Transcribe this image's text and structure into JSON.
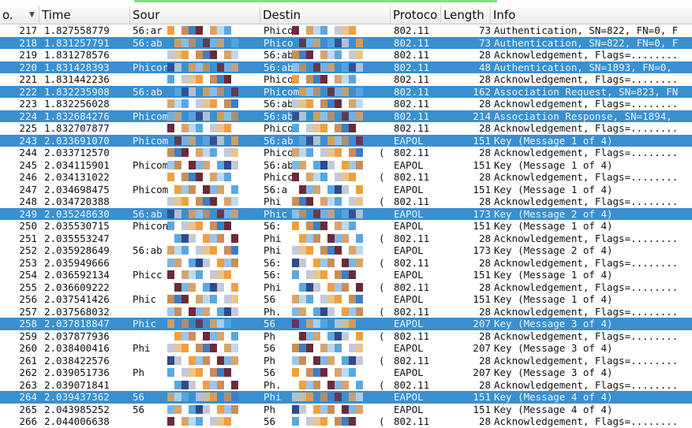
{
  "columns": [
    {
      "label": "o."
    },
    {
      "label": "Time"
    },
    {
      "label": "Sour"
    },
    {
      "label": "Destin"
    },
    {
      "label": "Protoco"
    },
    {
      "label": "Length"
    },
    {
      "label": "Info"
    }
  ],
  "colors": {
    "selected_row": "#3a8fd0",
    "header_bg": "#ececec",
    "accent_line": "#7ee07e"
  },
  "rows": [
    {
      "no": "217",
      "time": "1.827558779",
      "src": "56:ar",
      "dst": "Phico",
      "paren": "",
      "proto": "802.11",
      "len": "73",
      "info": "Authentication, SN=822, FN=0, F",
      "sel": false
    },
    {
      "no": "218",
      "time": "1.831257791",
      "src": "56:ab",
      "dst": "Phico",
      "paren": "",
      "proto": "802.11",
      "len": "73",
      "info": "Authentication, SN=822, FN=0, F",
      "sel": true
    },
    {
      "no": "219",
      "time": "1.831278576",
      "src": "",
      "dst": "56:ab",
      "paren": "",
      "proto": "802.11",
      "len": "28",
      "info": "Acknowledgement, Flags=........",
      "sel": false
    },
    {
      "no": "220",
      "time": "1.831428393",
      "src": "Phicor",
      "dst": "56:ab",
      "paren": "",
      "proto": "802.11",
      "len": "48",
      "info": "Authentication, SN=1893, FN=0,",
      "sel": true
    },
    {
      "no": "221",
      "time": "1.831442236",
      "src": "",
      "dst": "Phicom",
      "paren": "",
      "proto": "802.11",
      "len": "28",
      "info": "Acknowledgement, Flags=........",
      "sel": false
    },
    {
      "no": "222",
      "time": "1.832235908",
      "src": "56:ab",
      "dst": "Phicom",
      "paren": "",
      "proto": "802.11",
      "len": "162",
      "info": "Association Request, SN=823, FN",
      "sel": true
    },
    {
      "no": "223",
      "time": "1.832256028",
      "src": "",
      "dst": "56:ab:",
      "paren": "",
      "proto": "802.11",
      "len": "28",
      "info": "Acknowledgement, Flags=........",
      "sel": false
    },
    {
      "no": "224",
      "time": "1.832684276",
      "src": "Phicom",
      "dst": "56:ab",
      "paren": "",
      "proto": "802.11",
      "len": "214",
      "info": "Association Response, SN=1894,",
      "sel": true
    },
    {
      "no": "225",
      "time": "1.832707877",
      "src": "",
      "dst": "Phicor",
      "paren": "",
      "proto": "802.11",
      "len": "28",
      "info": "Acknowledgement, Flags=........",
      "sel": false
    },
    {
      "no": "243",
      "time": "2.033691070",
      "src": "Phicom",
      "dst": "56:ab",
      "paren": "",
      "proto": "EAPOL",
      "len": "151",
      "info": "Key (Message 1 of 4)",
      "sel": true
    },
    {
      "no": "244",
      "time": "2.033712570",
      "src": "",
      "dst": "Phico",
      "paren": "(",
      "proto": "802.11",
      "len": "28",
      "info": "Acknowledgement, Flags=........",
      "sel": false
    },
    {
      "no": "245",
      "time": "2.034115901",
      "src": "Phicom",
      "dst": "56:ab",
      "paren": "",
      "proto": "EAPOL",
      "len": "151",
      "info": "Key (Message 1 of 4)",
      "sel": false
    },
    {
      "no": "246",
      "time": "2.034131022",
      "src": "",
      "dst": "Phicc",
      "paren": "(",
      "proto": "802.11",
      "len": "28",
      "info": "Acknowledgement, Flags=........",
      "sel": false
    },
    {
      "no": "247",
      "time": "2.034698475",
      "src": "Phicom",
      "dst": "56:a",
      "paren": "",
      "proto": "EAPOL",
      "len": "151",
      "info": "Key (Message 1 of 4)",
      "sel": false
    },
    {
      "no": "248",
      "time": "2.034720388",
      "src": "",
      "dst": "Phi",
      "paren": "(",
      "proto": "802.11",
      "len": "28",
      "info": "Acknowledgement, Flags=........",
      "sel": false
    },
    {
      "no": "249",
      "time": "2.035248630",
      "src": "56:ab",
      "dst": "Phic",
      "paren": "",
      "proto": "EAPOL",
      "len": "173",
      "info": "Key (Message 2 of 4)",
      "sel": true
    },
    {
      "no": "250",
      "time": "2.035530715",
      "src": "Phicon",
      "dst": "56:",
      "paren": "",
      "proto": "EAPOL",
      "len": "151",
      "info": "Key (Message 1 of 4)",
      "sel": false
    },
    {
      "no": "251",
      "time": "2.035553247",
      "src": "",
      "dst": "Phi",
      "paren": "(",
      "proto": "802.11",
      "len": "28",
      "info": "Acknowledgement, Flags=........",
      "sel": false
    },
    {
      "no": "252",
      "time": "2.035928649",
      "src": "56:ab",
      "dst": "Phi",
      "paren": "",
      "proto": "EAPOL",
      "len": "173",
      "info": "Key (Message 2 of 4)",
      "sel": false
    },
    {
      "no": "253",
      "time": "2.035949666",
      "src": "",
      "dst": "56:",
      "paren": "(",
      "proto": "802.11",
      "len": "28",
      "info": "Acknowledgement, Flags=........",
      "sel": false
    },
    {
      "no": "254",
      "time": "2.036592134",
      "src": "Phicc",
      "dst": "56:",
      "paren": "",
      "proto": "EAPOL",
      "len": "151",
      "info": "Key (Message 1 of 4)",
      "sel": false
    },
    {
      "no": "255",
      "time": "2.036609222",
      "src": "",
      "dst": "Phi",
      "paren": "(",
      "proto": "802.11",
      "len": "28",
      "info": "Acknowledgement, Flags=........",
      "sel": false
    },
    {
      "no": "256",
      "time": "2.037541426",
      "src": "Phic",
      "dst": "56",
      "paren": "",
      "proto": "EAPOL",
      "len": "151",
      "info": "Key (Message 1 of 4)",
      "sel": false
    },
    {
      "no": "257",
      "time": "2.037568032",
      "src": "",
      "dst": "Ph.",
      "paren": "(",
      "proto": "802.11",
      "len": "28",
      "info": "Acknowledgement, Flags=........",
      "sel": false
    },
    {
      "no": "258",
      "time": "2.037818847",
      "src": "Phic",
      "dst": "56",
      "paren": "",
      "proto": "EAPOL",
      "len": "207",
      "info": "Key (Message 3 of 4)",
      "sel": true
    },
    {
      "no": "259",
      "time": "2.037877936",
      "src": "",
      "dst": "Ph",
      "paren": "(",
      "proto": "802.11",
      "len": "28",
      "info": "Acknowledgement, Flags=........",
      "sel": false
    },
    {
      "no": "260",
      "time": "2.038400416",
      "src": "Phi",
      "dst": "56",
      "paren": "",
      "proto": "EAPOL",
      "len": "207",
      "info": "Key (Message 3 of 4)",
      "sel": false
    },
    {
      "no": "261",
      "time": "2.038422576",
      "src": "",
      "dst": "Ph",
      "paren": "(",
      "proto": "802.11",
      "len": "28",
      "info": "Acknowledgement, Flags=........",
      "sel": false
    },
    {
      "no": "262",
      "time": "2.039051736",
      "src": "Ph",
      "dst": "56",
      "paren": "",
      "proto": "EAPOL",
      "len": "207",
      "info": "Key (Message 3 of 4)",
      "sel": false
    },
    {
      "no": "263",
      "time": "2.039071841",
      "src": "",
      "dst": "Ph.",
      "paren": "(",
      "proto": "802.11",
      "len": "28",
      "info": "Acknowledgement, Flags=........",
      "sel": false
    },
    {
      "no": "264",
      "time": "2.039437362",
      "src": "56",
      "dst": "Phi",
      "paren": "",
      "proto": "EAPOL",
      "len": "151",
      "info": "Key (Message 4 of 4)",
      "sel": true
    },
    {
      "no": "265",
      "time": "2.043985252",
      "src": "56",
      "dst": "Ph",
      "paren": "",
      "proto": "EAPOL",
      "len": "151",
      "info": "Key (Message 4 of 4)",
      "sel": false
    },
    {
      "no": "266",
      "time": "2.044006638",
      "src": "",
      "dst": "56",
      "paren": "(",
      "proto": "802.11",
      "len": "28",
      "info": "Acknowledgement, Flags=........",
      "sel": false
    }
  ]
}
